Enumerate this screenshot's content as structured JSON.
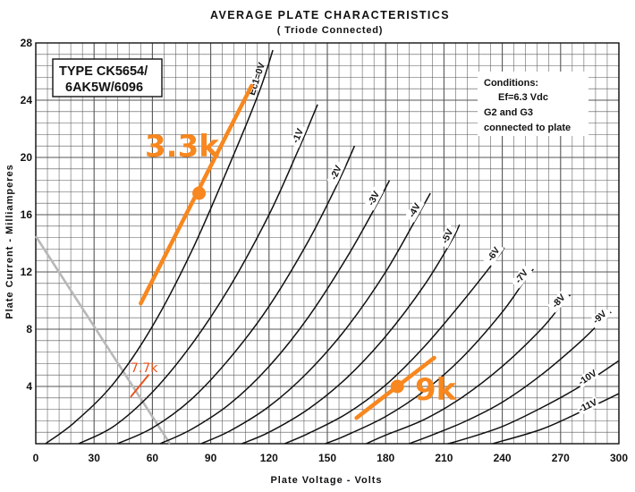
{
  "chart_data": {
    "type": "line",
    "title": "AVERAGE PLATE CHARACTERISTICS",
    "subtitle": "( Triode Connected)",
    "xlabel": "Plate Voltage - Volts",
    "ylabel": "Plate Current - Milliamperes",
    "xlim": [
      0,
      300
    ],
    "ylim": [
      0,
      28
    ],
    "x_ticks": [
      0,
      30,
      60,
      90,
      120,
      150,
      180,
      210,
      240,
      270,
      300
    ],
    "y_ticks": [
      4,
      8,
      12,
      16,
      20,
      24,
      28
    ],
    "grid": true,
    "tube_type_lines": [
      "TYPE CK5654/",
      "6AK5W/6096"
    ],
    "conditions": [
      "Conditions:",
      "Ef=6.3 Vdc",
      "G2 and G3",
      "connected to plate"
    ],
    "series": [
      {
        "name": "Ec1=0V",
        "x": [
          5,
          20,
          40,
          60,
          80,
          100,
          115,
          122
        ],
        "y": [
          0,
          1.5,
          4.2,
          8.2,
          13.4,
          19.6,
          24.6,
          27.5
        ]
      },
      {
        "name": "-1V",
        "x": [
          22,
          40,
          60,
          80,
          100,
          120,
          135,
          145
        ],
        "y": [
          0,
          1.2,
          3.6,
          6.9,
          11,
          16,
          20.5,
          23.7
        ]
      },
      {
        "name": "-2V",
        "x": [
          42,
          60,
          80,
          100,
          120,
          140,
          155,
          164
        ],
        "y": [
          0,
          1.1,
          3.1,
          6,
          9.6,
          14.1,
          18.1,
          20.8
        ]
      },
      {
        "name": "-3V",
        "x": [
          64,
          80,
          100,
          120,
          140,
          160,
          175,
          182
        ],
        "y": [
          0,
          1,
          2.8,
          5.4,
          8.8,
          13,
          16.6,
          18.4
        ]
      },
      {
        "name": "-4V",
        "x": [
          85,
          100,
          120,
          140,
          160,
          180,
          196,
          203
        ],
        "y": [
          0,
          0.9,
          2.6,
          5,
          8.1,
          12,
          15.8,
          17.5
        ]
      },
      {
        "name": "-5V",
        "x": [
          106,
          120,
          140,
          160,
          180,
          200,
          214,
          218
        ],
        "y": [
          0,
          0.8,
          2.4,
          4.6,
          7.5,
          11.1,
          14.2,
          15.3
        ]
      },
      {
        "name": "-6V",
        "x": [
          128,
          140,
          160,
          180,
          200,
          220,
          238,
          241
        ],
        "y": [
          0,
          0.7,
          2.1,
          4.1,
          6.8,
          10,
          13.1,
          13.7
        ]
      },
      {
        "name": "-7V",
        "x": [
          149,
          160,
          180,
          200,
          220,
          240,
          252,
          256
        ],
        "y": [
          0,
          0.6,
          1.9,
          3.7,
          6.1,
          9.2,
          11.5,
          12.2
        ]
      },
      {
        "name": "-8V",
        "x": [
          170,
          180,
          200,
          220,
          240,
          260,
          271,
          275
        ],
        "y": [
          0,
          0.6,
          1.7,
          3.3,
          5.4,
          8,
          9.8,
          10.4
        ]
      },
      {
        "name": "-9V",
        "x": [
          192,
          200,
          220,
          240,
          260,
          280,
          292,
          296
        ],
        "y": [
          0,
          0.4,
          1.5,
          2.9,
          4.8,
          7.1,
          8.7,
          9.2
        ]
      },
      {
        "name": "-10V",
        "x": [
          212,
          220,
          240,
          260,
          280,
          300
        ],
        "y": [
          0,
          0.3,
          1.2,
          2.5,
          4,
          5.8
        ]
      },
      {
        "name": "-11V",
        "x": [
          235,
          260,
          280,
          300
        ],
        "y": [
          0,
          1,
          2.2,
          3.5
        ]
      }
    ],
    "annotations": [
      {
        "text": "3.3k",
        "line_x": [
          54,
          111
        ],
        "line_y": [
          9.8,
          25
        ],
        "point_x": [
          84
        ],
        "point_y": [
          17.5
        ]
      },
      {
        "text": "9k",
        "line_x": [
          165,
          205
        ],
        "line_y": [
          1.8,
          6
        ],
        "point_x": [
          186
        ],
        "point_y": [
          4
        ]
      },
      {
        "text": "7.7k",
        "line_x": [
          49,
          58
        ],
        "line_y": [
          3.3,
          4.8
        ]
      }
    ],
    "load_line_7k7": {
      "x": [
        0,
        69
      ],
      "y": [
        14.5,
        0
      ]
    }
  }
}
